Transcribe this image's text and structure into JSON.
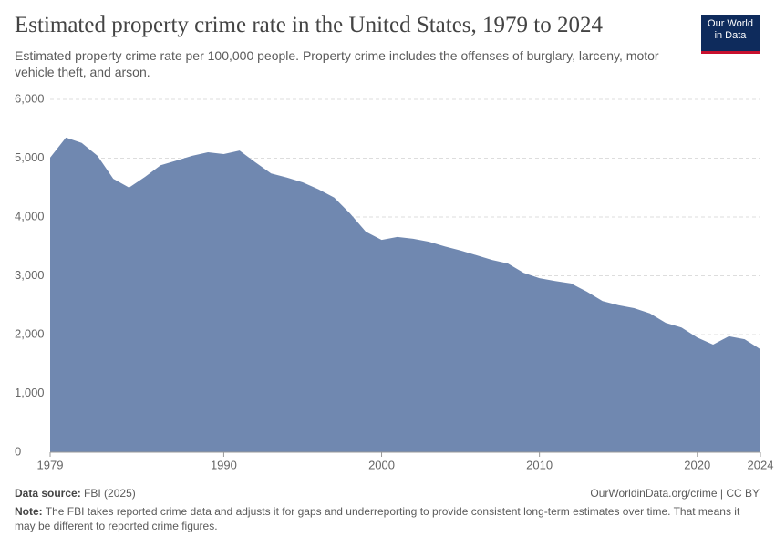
{
  "header": {
    "title": "Estimated property crime rate in the United States, 1979 to 2024",
    "subtitle": "Estimated property crime rate per 100,000 people. Property crime includes the offenses of burglary, larceny, motor vehicle theft, and arson.",
    "logo": [
      "Our World",
      "in Data"
    ]
  },
  "chart_data": {
    "type": "area",
    "x": [
      1979,
      1980,
      1981,
      1982,
      1983,
      1984,
      1985,
      1986,
      1987,
      1988,
      1989,
      1990,
      1991,
      1992,
      1993,
      1994,
      1995,
      1996,
      1997,
      1998,
      1999,
      2000,
      2001,
      2002,
      2003,
      2004,
      2005,
      2006,
      2007,
      2008,
      2009,
      2010,
      2011,
      2012,
      2013,
      2014,
      2015,
      2016,
      2017,
      2018,
      2019,
      2020,
      2021,
      2022,
      2023,
      2024
    ],
    "values": [
      5010,
      5350,
      5260,
      5040,
      4650,
      4500,
      4680,
      4880,
      4960,
      5040,
      5100,
      5070,
      5130,
      4930,
      4740,
      4670,
      4590,
      4470,
      4330,
      4060,
      3750,
      3610,
      3660,
      3630,
      3580,
      3500,
      3430,
      3350,
      3270,
      3210,
      3050,
      2960,
      2910,
      2870,
      2730,
      2570,
      2500,
      2450,
      2360,
      2200,
      2120,
      1950,
      1830,
      1970,
      1920,
      1750
    ],
    "color": "#7088b0",
    "xlim": [
      1979,
      2024
    ],
    "xticks": [
      1979,
      1990,
      2000,
      2010,
      2020,
      2024
    ],
    "ylim": [
      0,
      6000
    ],
    "yticks": [
      0,
      {
        "value": 1000,
        "label": "1,000"
      },
      {
        "value": 2000,
        "label": "2,000"
      },
      {
        "value": 3000,
        "label": "3,000"
      },
      {
        "value": 4000,
        "label": "4,000"
      },
      {
        "value": 5000,
        "label": "5,000"
      },
      {
        "value": 6000,
        "label": "6,000"
      }
    ],
    "grid": true
  },
  "footer": {
    "source_label": "Data source:",
    "source": "FBI (2025)",
    "url": "OurWorldinData.org/crime | CC BY",
    "note_label": "Note:",
    "note": "The FBI takes reported crime data and adjusts it for gaps and underreporting to provide consistent long-term estimates over time. That means it may be different to reported crime figures."
  }
}
